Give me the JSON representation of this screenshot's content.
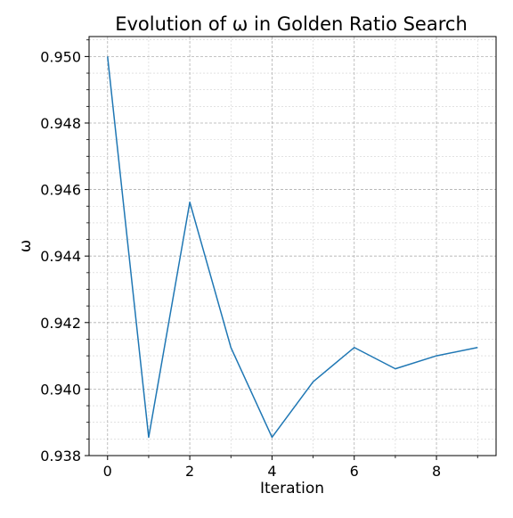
{
  "chart_data": {
    "type": "line",
    "title": "Evolution of ω in Golden Ratio Search",
    "xlabel": "Iteration",
    "ylabel": "ω",
    "x": [
      0,
      1,
      2,
      3,
      4,
      5,
      6,
      7,
      8,
      9
    ],
    "series": [
      {
        "values": [
          0.95,
          0.93855,
          0.94562,
          0.94125,
          0.93855,
          0.94022,
          0.94125,
          0.94061,
          0.941,
          0.94125
        ]
      }
    ],
    "xlim": [
      -0.45,
      9.45
    ],
    "ylim": [
      0.938,
      0.9506
    ],
    "xticks": [
      0,
      2,
      4,
      6,
      8
    ],
    "xtick_labels": [
      "0",
      "2",
      "4",
      "6",
      "8"
    ],
    "yticks": [
      0.938,
      0.94,
      0.942,
      0.944,
      0.946,
      0.948,
      0.95
    ],
    "ytick_labels": [
      "0.938",
      "0.940",
      "0.942",
      "0.944",
      "0.946",
      "0.948",
      "0.950"
    ],
    "grid": "major and minor",
    "legend": "none",
    "colors": {
      "line": "#1f77b4",
      "major_grid": "#b0b0b0",
      "minor_grid": "#d0d0d0",
      "axis": "#000000"
    }
  }
}
